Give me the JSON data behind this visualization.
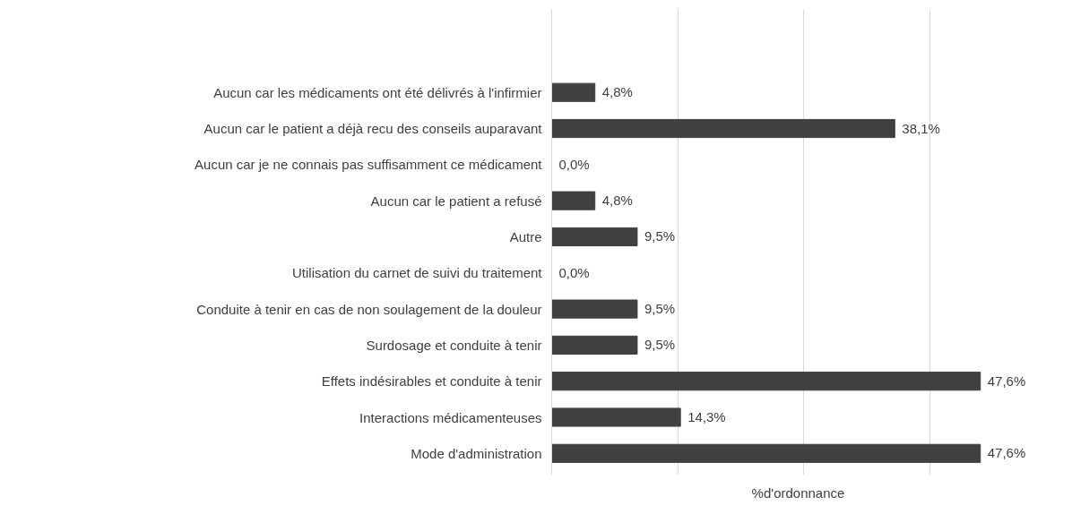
{
  "chart_data": {
    "type": "bar",
    "orientation": "horizontal",
    "xlabel": "%d'ordonnance",
    "categories": [
      "Aucun car les médicaments ont été délivrés à l'infirmier",
      "Aucun car le patient a déjà recu des conseils auparavant",
      "Aucun car je ne connais pas suffisamment ce médicament",
      "Aucun car le patient a refusé",
      "Autre",
      "Utilisation du carnet de suivi du traitement",
      "Conduite à tenir en cas de non soulagement de la douleur",
      "Surdosage et conduite à tenir",
      "Effets indésirables et conduite à tenir",
      "Interactions médicamenteuses",
      "Mode d'administration"
    ],
    "values": [
      4.8,
      38.1,
      0.0,
      4.8,
      9.5,
      0.0,
      9.5,
      9.5,
      47.6,
      14.3,
      47.6
    ],
    "value_labels": [
      "4,8%",
      "38,1%",
      "0,0%",
      "4,8%",
      "9,5%",
      "0,0%",
      "9,5%",
      "9,5%",
      "47,6%",
      "14,3%",
      "47,6%"
    ],
    "color": "#404040",
    "xticks": [
      {
        "value": 0,
        "label": null
      },
      {
        "value": 14,
        "label": null
      },
      {
        "value": 28,
        "label": null
      },
      {
        "value": 42,
        "label": null
      }
    ],
    "grid": "x",
    "tick_labels": "y"
  }
}
